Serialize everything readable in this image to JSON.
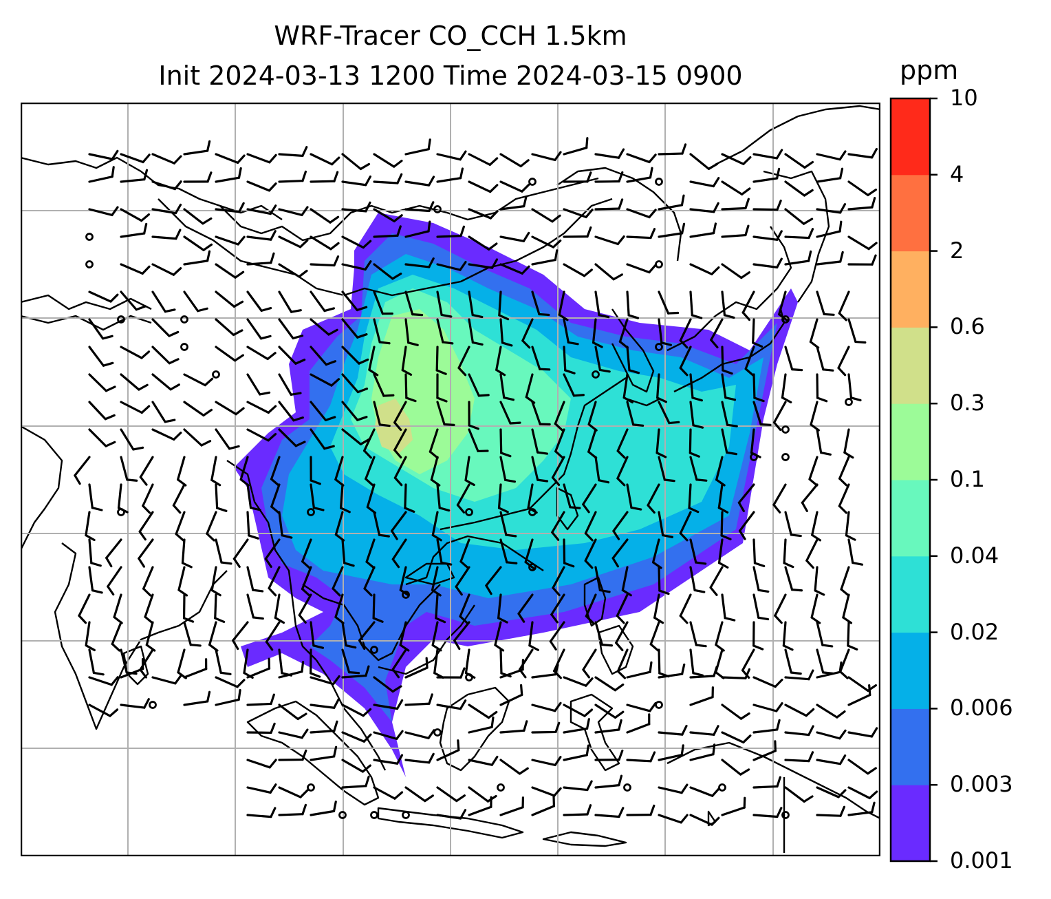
{
  "title": {
    "line1": "WRF-Tracer CO_CCH 1.5km",
    "line2": "Init 2024-03-13 1200 Time 2024-03-15 0900"
  },
  "colorbar": {
    "unit": "ppm",
    "levels": [
      "0.001",
      "0.003",
      "0.006",
      "0.02",
      "0.04",
      "0.1",
      "0.3",
      "0.6",
      "2",
      "4",
      "10"
    ],
    "colors": [
      "#6a2bff",
      "#3370ef",
      "#05b0e8",
      "#2ee0d6",
      "#68f8bd",
      "#9cfb98",
      "#d0e08a",
      "#ffb060",
      "#ff7040",
      "#ff2a1a"
    ]
  },
  "map": {
    "gridlines": true,
    "grid_color": "#b0b0b0",
    "coastline_color": "#000000",
    "overlay": "wind barbs",
    "field": "CO_CCH tracer concentration"
  }
}
